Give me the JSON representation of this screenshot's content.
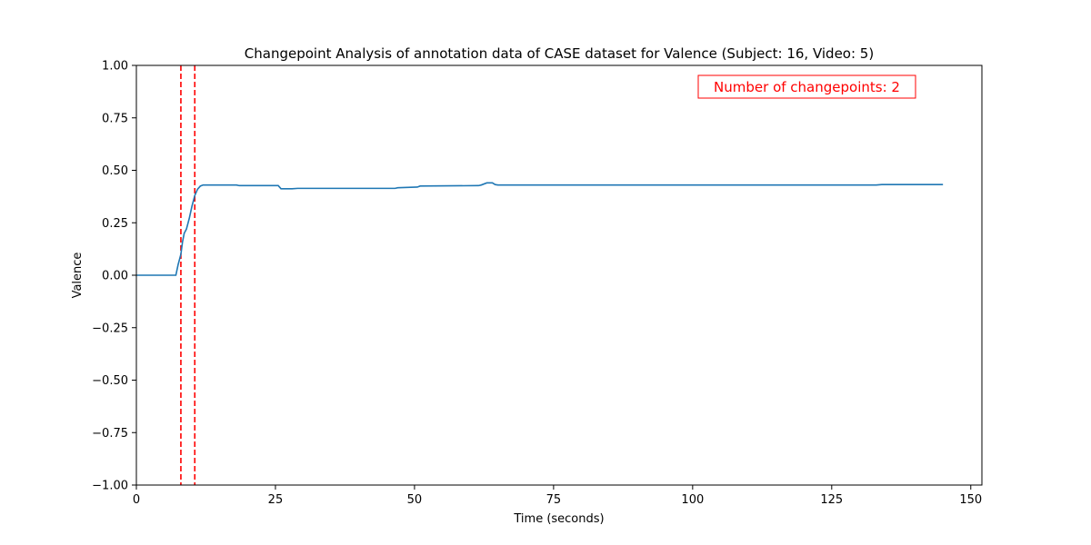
{
  "chart_data": {
    "type": "line",
    "title": "Changepoint Analysis of annotation data of CASE dataset for Valence (Subject: 16, Video: 5)",
    "xlabel": "Time (seconds)",
    "ylabel": "Valence",
    "xlim": [
      0,
      152
    ],
    "ylim": [
      -1.0,
      1.0
    ],
    "x_ticks": [
      0,
      25,
      50,
      75,
      100,
      125,
      150
    ],
    "y_ticks": [
      -1.0,
      -0.75,
      -0.5,
      -0.25,
      0.0,
      0.25,
      0.5,
      0.75,
      1.0
    ],
    "y_tick_labels": [
      "−1.00",
      "−0.75",
      "−0.50",
      "−0.25",
      "0.00",
      "0.25",
      "0.50",
      "0.75",
      "1.00"
    ],
    "grid": false,
    "series": [
      {
        "color": "#1f77b4",
        "x": [
          0,
          7.1,
          7.5,
          8.0,
          8.3,
          8.6,
          9.0,
          9.5,
          10.0,
          10.5,
          11.0,
          11.5,
          12.0,
          12.5,
          13.0,
          18.0,
          18.5,
          25.5,
          26.0,
          28.0,
          29.0,
          46.5,
          47.0,
          50.5,
          51.0,
          61.5,
          62.0,
          63.0,
          64.0,
          64.5,
          65.0,
          133.0,
          134.0,
          145.0
        ],
        "values": [
          0.0,
          0.0,
          0.05,
          0.1,
          0.16,
          0.2,
          0.22,
          0.27,
          0.33,
          0.38,
          0.41,
          0.425,
          0.43,
          0.43,
          0.43,
          0.43,
          0.427,
          0.427,
          0.412,
          0.412,
          0.414,
          0.414,
          0.417,
          0.42,
          0.425,
          0.427,
          0.43,
          0.44,
          0.44,
          0.432,
          0.43,
          0.43,
          0.432,
          0.432
        ]
      }
    ],
    "changepoints": {
      "color": "#ff0000",
      "x": [
        8.0,
        10.5
      ]
    },
    "annotation": {
      "text": "Number of changepoints: 2",
      "color": "#ff0000",
      "placement": "top-right"
    }
  }
}
